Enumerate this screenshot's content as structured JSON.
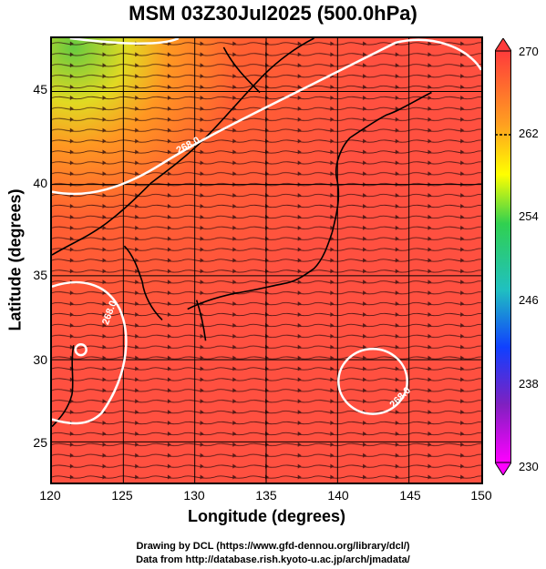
{
  "title": "MSM 03Z30Jul2025 (500.0hPa)",
  "xlabel": "Longitude (degrees)",
  "ylabel": "Latitude  (degrees)",
  "x_ticks": [
    "120",
    "125",
    "130",
    "135",
    "140",
    "145",
    "150"
  ],
  "y_ticks": [
    "25",
    "30",
    "35",
    "40",
    "45"
  ],
  "colorbar": {
    "ticks": [
      "270",
      "262",
      "254",
      "246",
      "238",
      "230"
    ],
    "colors": [
      "#ff3b3b",
      "#ffa020",
      "#ffff00",
      "#30d050",
      "#20c0c0",
      "#1040ff",
      "#8020c0",
      "#ff00ff"
    ]
  },
  "contour_labels": [
    "268.0",
    "268.0",
    "268.0"
  ],
  "credits": [
    "Drawing by DCL (https://www.gfd-dennou.org/library/dcl/)",
    "Data from http://database.rish.kyoto-u.ac.jp/arch/jmadata/"
  ],
  "chart_data": {
    "type": "map",
    "field": "temperature (K) with streamlines",
    "level": "500.0hPa",
    "valid_time": "03Z30Jul2025",
    "lon_range": [
      120,
      150
    ],
    "lat_range": [
      22.5,
      47.5
    ],
    "color_range": [
      230,
      270
    ],
    "contour_values": [
      268.0
    ]
  }
}
